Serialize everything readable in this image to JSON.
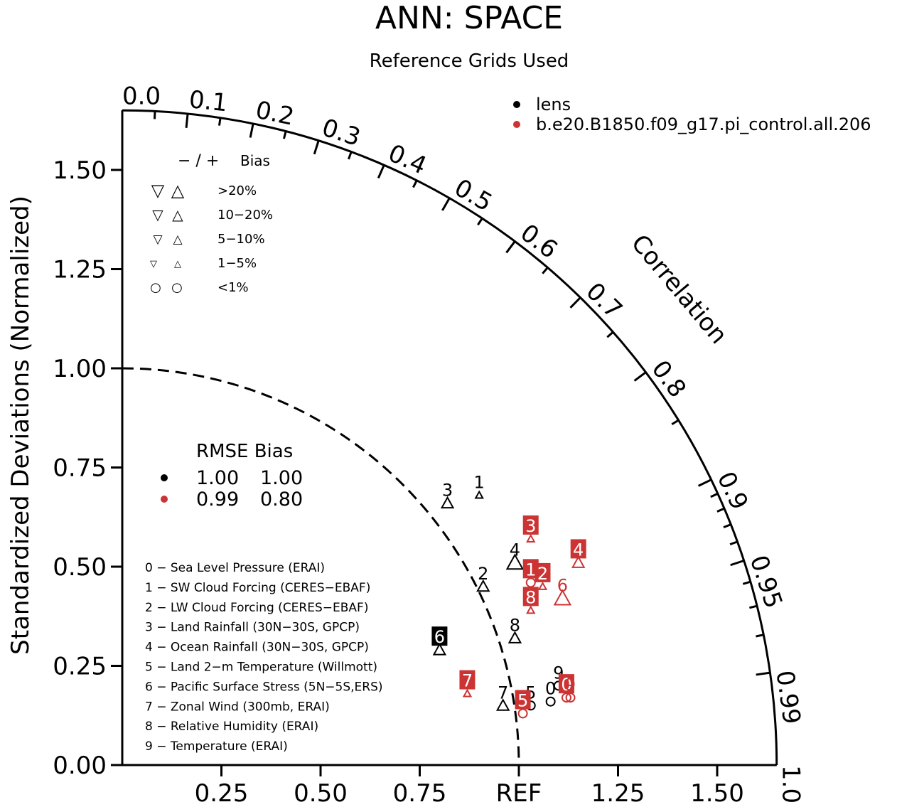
{
  "title": "ANN: SPACE",
  "subtitle": "Reference Grids Used",
  "y_axis_label": "Standardized Deviations (Normalized)",
  "correlation_label": "Correlation",
  "x_ref_label": "REF",
  "legend": {
    "cases": [
      {
        "label": "lens",
        "color": "#000000"
      },
      {
        "label": "b.e20.B1850.f09_g17.pi_control.all.206",
        "color": "#cc3333"
      }
    ]
  },
  "bias_legend": {
    "header_sign": "− / +",
    "header_bias": "Bias",
    "rows": [
      {
        "down": "▽",
        "up": "△",
        "label": ">20%"
      },
      {
        "down": "▽",
        "up": "△",
        "label": "10−20%"
      },
      {
        "down": "▽",
        "up": "△",
        "label": "5−10%"
      },
      {
        "down": "▽",
        "up": "△",
        "label": "1−5%"
      },
      {
        "down": "○",
        "up": "○",
        "label": "<1%"
      }
    ]
  },
  "rmse_table": {
    "header": "RMSE Bias",
    "rows": [
      {
        "color": "#000000",
        "rmse": "1.00",
        "bias": "1.00"
      },
      {
        "color": "#cc3333",
        "rmse": "0.99",
        "bias": "0.80"
      }
    ]
  },
  "variables": [
    "0 − Sea Level Pressure (ERAI)",
    "1 − SW Cloud Forcing (CERES−EBAF)",
    "2 − LW Cloud Forcing (CERES−EBAF)",
    "3 − Land Rainfall (30N−30S, GPCP)",
    "4 − Ocean Rainfall (30N−30S, GPCP)",
    "5 − Land 2−m Temperature (Willmott)",
    "6 − Pacific Surface Stress (5N−5S,ERS)",
    "7 − Zonal Wind (300mb, ERAI)",
    "8 − Relative Humidity (ERAI)",
    "9 − Temperature (ERAI)"
  ],
  "chart_data": {
    "type": "scatter",
    "chart_kind": "taylor diagram",
    "std_ticks": [
      "0.00",
      "0.25",
      "0.50",
      "0.75",
      "1.00",
      "1.25",
      "1.50"
    ],
    "x_ticks": [
      "0.25",
      "0.50",
      "0.75",
      "REF",
      "1.25",
      "1.50"
    ],
    "std_max": 1.65,
    "corr_labels": [
      "0.0",
      "0.1",
      "0.2",
      "0.3",
      "0.4",
      "0.5",
      "0.6",
      "0.7",
      "0.8",
      "0.9",
      "0.95",
      "0.99",
      "1.0"
    ],
    "corr_values": [
      0.0,
      0.1,
      0.2,
      0.3,
      0.4,
      0.5,
      0.6,
      0.7,
      0.8,
      0.9,
      0.95,
      0.99,
      1.0
    ],
    "minor_corr": [
      0.05,
      0.15,
      0.25,
      0.35,
      0.45,
      0.55,
      0.65,
      0.75,
      0.85,
      0.91,
      0.92,
      0.93,
      0.94,
      0.96,
      0.97,
      0.98
    ],
    "reference_std": 1.0,
    "series": [
      {
        "name": "lens",
        "color": "#000000",
        "points": [
          {
            "id": "0",
            "x": 1.08,
            "y": 0.16,
            "marker": "circle",
            "boxed": false
          },
          {
            "id": "1",
            "x": 0.9,
            "y": 0.68,
            "marker": "triangle-up",
            "size": "small",
            "boxed": false
          },
          {
            "id": "2",
            "x": 0.91,
            "y": 0.45,
            "marker": "triangle-up",
            "size": "medium",
            "boxed": false
          },
          {
            "id": "3",
            "x": 0.82,
            "y": 0.66,
            "marker": "triangle-up",
            "size": "medium",
            "boxed": false
          },
          {
            "id": "4",
            "x": 0.99,
            "y": 0.51,
            "marker": "triangle-up",
            "size": "large",
            "boxed": false
          },
          {
            "id": "5",
            "x": 1.03,
            "y": 0.15,
            "marker": "circle",
            "boxed": false
          },
          {
            "id": "6",
            "x": 0.8,
            "y": 0.29,
            "marker": "triangle-up",
            "size": "medium",
            "boxed": true
          },
          {
            "id": "7",
            "x": 0.96,
            "y": 0.15,
            "marker": "triangle-up",
            "size": "medium",
            "boxed": false
          },
          {
            "id": "8",
            "x": 0.99,
            "y": 0.32,
            "marker": "triangle-up",
            "size": "medium",
            "boxed": false
          },
          {
            "id": "9",
            "x": 1.1,
            "y": 0.2,
            "marker": "circle",
            "boxed": false
          }
        ]
      },
      {
        "name": "b.e20.B1850.f09_g17.pi_control.all.206",
        "color": "#cc3333",
        "points": [
          {
            "id": "0",
            "x": 1.12,
            "y": 0.17,
            "marker": "circle",
            "boxed": true
          },
          {
            "id": "1",
            "x": 1.03,
            "y": 0.46,
            "marker": "circle",
            "boxed": true
          },
          {
            "id": "2",
            "x": 1.06,
            "y": 0.45,
            "marker": "triangle-up",
            "size": "small",
            "boxed": true
          },
          {
            "id": "3",
            "x": 1.03,
            "y": 0.57,
            "marker": "triangle-up",
            "size": "small",
            "boxed": true
          },
          {
            "id": "4",
            "x": 1.15,
            "y": 0.51,
            "marker": "triangle-up",
            "size": "medium",
            "boxed": true
          },
          {
            "id": "5",
            "x": 1.01,
            "y": 0.13,
            "marker": "circle",
            "boxed": true
          },
          {
            "id": "6",
            "x": 1.11,
            "y": 0.42,
            "marker": "triangle-up",
            "size": "large",
            "boxed": false
          },
          {
            "id": "7",
            "x": 0.87,
            "y": 0.18,
            "marker": "triangle-up",
            "size": "small",
            "boxed": true
          },
          {
            "id": "8",
            "x": 1.03,
            "y": 0.39,
            "marker": "triangle-up",
            "size": "small",
            "boxed": true
          },
          {
            "id": "9",
            "x": 1.13,
            "y": 0.17,
            "marker": "circle",
            "boxed": false
          }
        ]
      }
    ]
  }
}
